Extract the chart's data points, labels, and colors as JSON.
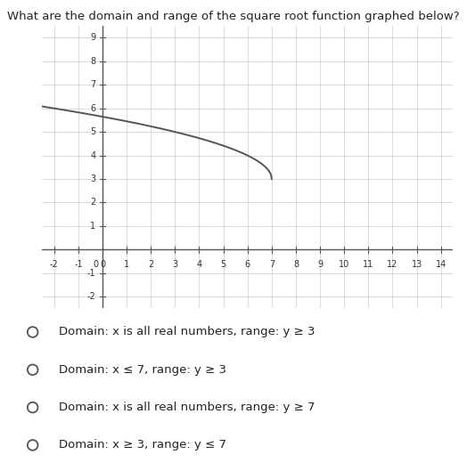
{
  "title": "What are the domain and range of the square root function graphed below?",
  "title_fontsize": 9.5,
  "xlim": [
    -2.5,
    14.5
  ],
  "ylim": [
    -2.5,
    9.5
  ],
  "xticks": [
    -2,
    -1,
    0,
    1,
    2,
    3,
    4,
    5,
    6,
    7,
    8,
    9,
    10,
    11,
    12,
    13,
    14
  ],
  "yticks": [
    -2,
    -1,
    0,
    1,
    2,
    3,
    4,
    5,
    6,
    7,
    8,
    9
  ],
  "curve_color": "#555555",
  "curve_linewidth": 1.4,
  "endpoint_x": 7,
  "endpoint_y": 3,
  "background_color": "#ffffff",
  "grid_color": "#cccccc",
  "axis_color": "#555555",
  "tick_label_fontsize": 7,
  "choices": [
    "Domain: x is all real numbers, range: y ≥ 3",
    "Domain: x ≤ 7, range: y ≥ 3",
    "Domain: x is all real numbers, range: y ≥ 7",
    "Domain: x ≥ 3, range: y ≤ 7"
  ],
  "choice_fontsize": 9.5,
  "fig_width": 5.24,
  "fig_height": 5.29,
  "dpi": 100
}
